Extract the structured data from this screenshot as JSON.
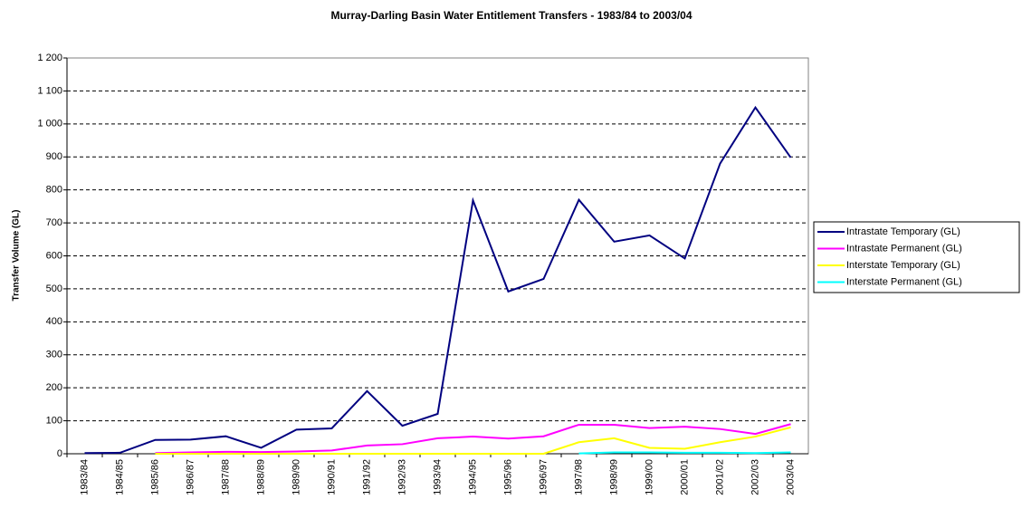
{
  "chart_data": {
    "type": "line",
    "title": "Murray-Darling Basin Water Entitlement Transfers - 1983/84 to 2003/04",
    "y_label": "Transfer Volume (GL)",
    "categories": [
      "1983/84",
      "1984/85",
      "1985/86",
      "1986/87",
      "1987/88",
      "1988/89",
      "1989/90",
      "1990/91",
      "1991/92",
      "1992/93",
      "1993/94",
      "1994/95",
      "1995/96",
      "1996/97",
      "1997/98",
      "1998/99",
      "1999/00",
      "2000/01",
      "2001/02",
      "2002/03",
      "2003/04"
    ],
    "series": [
      {
        "name": "Intrastate Temporary (GL)",
        "color": "#000080",
        "values": [
          2,
          3,
          42,
          43,
          53,
          18,
          73,
          77,
          190,
          85,
          121,
          768,
          492,
          530,
          770,
          643,
          662,
          592,
          880,
          1050,
          898
        ]
      },
      {
        "name": "Intrastate Permanent (GL)",
        "color": "#ff00ff",
        "values": [
          null,
          null,
          2,
          4,
          6,
          5,
          7,
          10,
          25,
          29,
          47,
          52,
          46,
          53,
          88,
          88,
          78,
          82,
          75,
          60,
          90
        ]
      },
      {
        "name": "Interstate Temporary (GL)",
        "color": "#ffff00",
        "values": [
          null,
          null,
          0,
          0,
          0,
          0,
          0,
          0,
          0,
          0,
          0,
          0,
          0,
          0,
          35,
          47,
          18,
          15,
          35,
          52,
          80
        ]
      },
      {
        "name": "Interstate Permanent (GL)",
        "color": "#00ffff",
        "values": [
          null,
          null,
          null,
          null,
          null,
          null,
          null,
          null,
          null,
          null,
          null,
          null,
          null,
          null,
          1,
          4,
          4,
          3,
          3,
          2,
          4
        ]
      }
    ],
    "ylim": [
      0,
      1200
    ],
    "yticks": [
      0,
      100,
      200,
      300,
      400,
      500,
      600,
      700,
      800,
      900,
      {
        "value": 1000,
        "label": "1 000"
      },
      {
        "value": 1100,
        "label": "1 100"
      },
      {
        "value": 1200,
        "label": "1 200"
      }
    ],
    "grid": true,
    "legend": "right"
  }
}
